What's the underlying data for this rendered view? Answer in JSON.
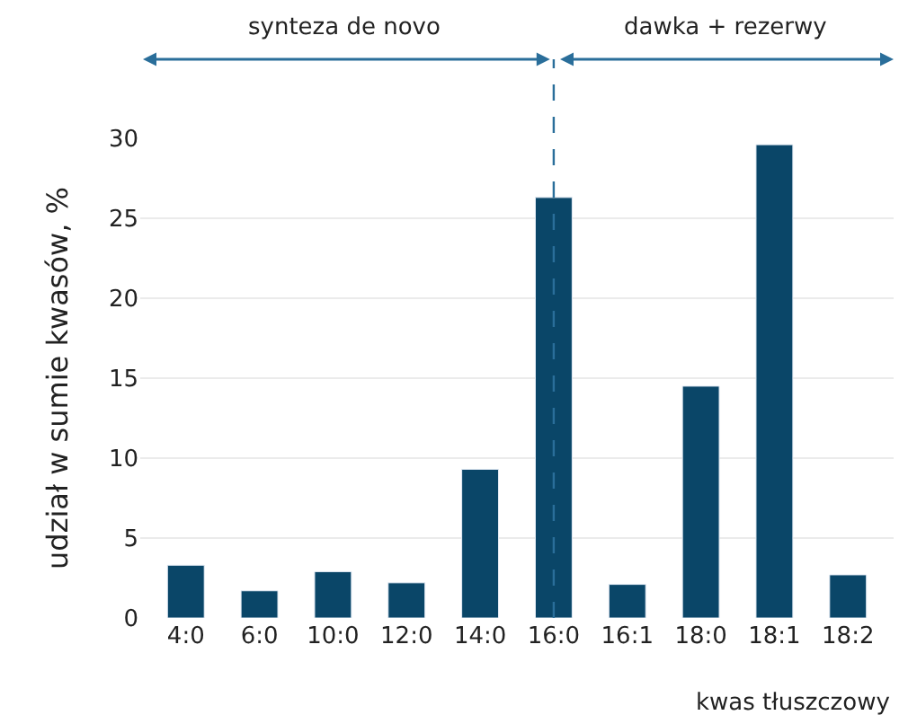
{
  "chart_data": {
    "type": "bar",
    "categories": [
      "4:0",
      "6:0",
      "10:0",
      "12:0",
      "14:0",
      "16:0",
      "16:1",
      "18:0",
      "18:1",
      "18:2"
    ],
    "values": [
      3.3,
      1.7,
      2.9,
      2.2,
      9.3,
      26.3,
      2.1,
      14.5,
      29.6,
      2.7
    ],
    "color": "#0a4668",
    "xlabel": "kwas tłuszczowy",
    "ylabel": "udział w sumie kwasów, %",
    "ylim": [
      0,
      30
    ],
    "yticks": [
      0,
      5,
      10,
      15,
      20,
      25,
      30
    ],
    "grid": "y",
    "ref_lines": [
      {
        "axis": "x",
        "value": "16:0",
        "color": "#2a6e9a",
        "line_style": "dashed"
      }
    ],
    "annotations": [
      "synteza de novo",
      "dawka + rezerwy"
    ]
  }
}
